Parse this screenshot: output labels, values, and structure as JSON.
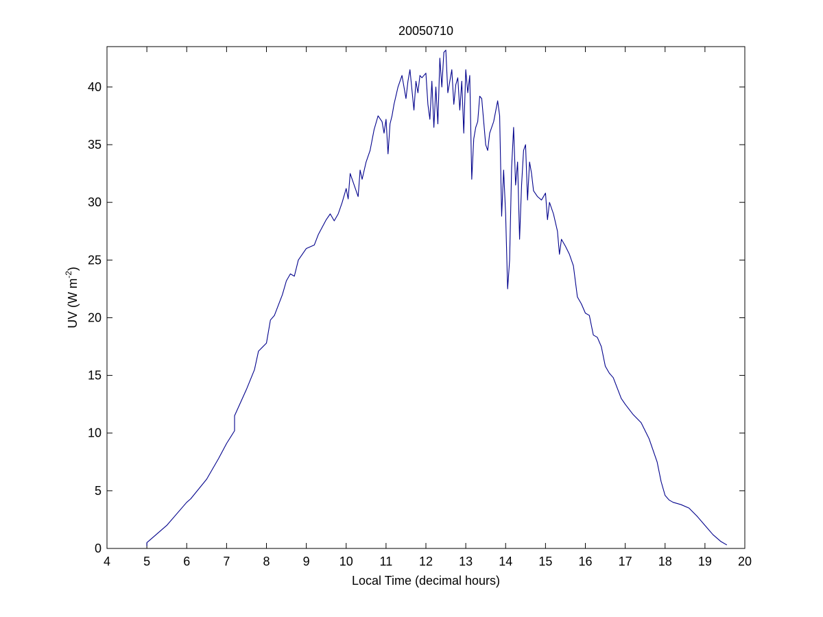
{
  "chart_data": {
    "type": "line",
    "title": "20050710",
    "xlabel": "Local Time (decimal hours)",
    "ylabel_base": "UV (W m",
    "ylabel_sup": "-2",
    "ylabel_close": ")",
    "xlim": [
      4,
      20
    ],
    "ylim": [
      0,
      43.5
    ],
    "xticks": [
      4,
      5,
      6,
      7,
      8,
      9,
      10,
      11,
      12,
      13,
      14,
      15,
      16,
      17,
      18,
      19,
      20
    ],
    "yticks": [
      0,
      5,
      10,
      15,
      20,
      25,
      30,
      35,
      40
    ],
    "grid": false,
    "line_color": "#00008b",
    "series": [
      {
        "x": [
          5.0,
          5.0,
          5.5,
          6.0,
          6.1,
          6.5,
          6.8,
          7.0,
          7.2,
          7.2,
          7.5,
          7.7,
          7.8,
          8.0,
          8.1,
          8.2,
          8.4,
          8.5,
          8.6,
          8.7,
          8.8,
          9.0,
          9.2,
          9.3,
          9.5,
          9.6,
          9.7,
          9.8,
          9.9,
          10.0,
          10.05,
          10.1,
          10.2,
          10.3,
          10.35,
          10.4,
          10.5,
          10.6,
          10.7,
          10.8,
          10.9,
          10.95,
          11.0,
          11.05,
          11.1,
          11.15,
          11.2,
          11.3,
          11.4,
          11.5,
          11.55,
          11.6,
          11.7,
          11.75,
          11.8,
          11.85,
          11.9,
          12.0,
          12.05,
          12.1,
          12.15,
          12.2,
          12.25,
          12.3,
          12.35,
          12.4,
          12.45,
          12.5,
          12.55,
          12.6,
          12.65,
          12.7,
          12.75,
          12.8,
          12.85,
          12.9,
          12.95,
          13.0,
          13.05,
          13.1,
          13.15,
          13.2,
          13.25,
          13.3,
          13.35,
          13.4,
          13.5,
          13.55,
          13.6,
          13.7,
          13.8,
          13.85,
          13.9,
          13.95,
          14.0,
          14.05,
          14.1,
          14.15,
          14.2,
          14.25,
          14.3,
          14.35,
          14.4,
          14.45,
          14.5,
          14.55,
          14.6,
          14.65,
          14.7,
          14.8,
          14.9,
          15.0,
          15.05,
          15.1,
          15.2,
          15.3,
          15.35,
          15.4,
          15.5,
          15.6,
          15.7,
          15.8,
          15.9,
          16.0,
          16.1,
          16.2,
          16.3,
          16.4,
          16.5,
          16.6,
          16.7,
          16.9,
          17.0,
          17.2,
          17.4,
          17.6,
          17.8,
          17.9,
          18.0,
          18.1,
          18.2,
          18.4,
          18.6,
          18.8,
          19.0,
          19.2,
          19.4,
          19.55
        ],
        "y": [
          0.2,
          0.5,
          2.0,
          4.0,
          4.3,
          6.0,
          7.8,
          9.1,
          10.2,
          11.5,
          13.8,
          15.5,
          17.1,
          17.8,
          19.8,
          20.2,
          22.0,
          23.2,
          23.8,
          23.6,
          25.0,
          26.0,
          26.3,
          27.2,
          28.5,
          29.0,
          28.4,
          29.0,
          30.0,
          31.2,
          30.3,
          32.5,
          31.5,
          30.5,
          32.8,
          32.0,
          33.5,
          34.5,
          36.3,
          37.5,
          37.0,
          36.0,
          37.2,
          34.2,
          36.8,
          37.5,
          38.5,
          40.0,
          41.0,
          39.0,
          40.5,
          41.5,
          38.0,
          40.5,
          39.5,
          41.0,
          40.8,
          41.2,
          38.5,
          37.2,
          40.5,
          36.5,
          40.0,
          36.8,
          42.5,
          40.0,
          43.0,
          43.2,
          39.5,
          40.5,
          41.5,
          38.5,
          40.2,
          40.8,
          38.0,
          40.5,
          36.0,
          41.5,
          39.5,
          41.0,
          32.0,
          35.5,
          36.5,
          37.0,
          39.2,
          39.0,
          35.0,
          34.5,
          36.0,
          37.0,
          38.8,
          37.5,
          28.8,
          32.8,
          29.0,
          22.5,
          25.0,
          33.0,
          36.5,
          31.5,
          33.5,
          26.8,
          31.5,
          34.5,
          35.0,
          30.2,
          33.5,
          32.5,
          31.0,
          30.5,
          30.2,
          30.8,
          28.5,
          30.0,
          29.0,
          27.5,
          25.5,
          26.8,
          26.2,
          25.5,
          24.5,
          21.8,
          21.2,
          20.4,
          20.2,
          18.5,
          18.3,
          17.5,
          15.8,
          15.2,
          14.8,
          13.0,
          12.5,
          11.6,
          10.9,
          9.5,
          7.5,
          5.8,
          4.6,
          4.2,
          4.0,
          3.8,
          3.5,
          2.8,
          2.0,
          1.2,
          0.6,
          0.3
        ]
      }
    ]
  }
}
